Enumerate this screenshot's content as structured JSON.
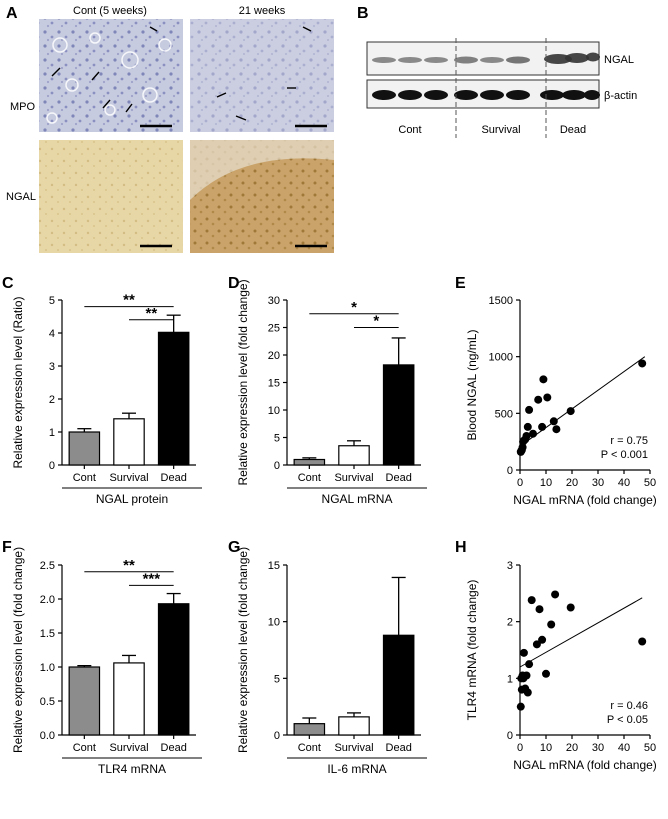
{
  "panel_a": {
    "letter": "A",
    "col_labels": [
      "Cont (5 weeks)",
      "21 weeks"
    ],
    "row_labels": [
      "MPO",
      "NGAL"
    ]
  },
  "panel_b": {
    "letter": "B",
    "blot_labels": [
      "NGAL",
      "β-actin"
    ],
    "group_labels": [
      "Cont",
      "Survival",
      "Dead"
    ]
  },
  "chart_data": [
    {
      "panel": "C",
      "type": "bar",
      "categories": [
        "Cont",
        "Survival",
        "Dead"
      ],
      "values": [
        1.0,
        1.4,
        4.02
      ],
      "errors": [
        0.1,
        0.17,
        0.52
      ],
      "colors": [
        "#8c8c8c",
        "#ffffff",
        "#000000"
      ],
      "ylabel": "Relative expression level (Ratio)",
      "xlabel": "NGAL protein",
      "ylim": [
        0,
        5
      ],
      "yticks": [
        0,
        1,
        2,
        3,
        4,
        5
      ],
      "significance": [
        {
          "from": 0,
          "to": 2,
          "label": "**",
          "y": 4.8
        },
        {
          "from": 1,
          "to": 2,
          "label": "**",
          "y": 4.4
        }
      ]
    },
    {
      "panel": "D",
      "type": "bar",
      "categories": [
        "Cont",
        "Survival",
        "Dead"
      ],
      "values": [
        1.0,
        3.5,
        18.2
      ],
      "errors": [
        0.3,
        0.9,
        4.9
      ],
      "colors": [
        "#8c8c8c",
        "#ffffff",
        "#000000"
      ],
      "ylabel": "Relative expression level (fold change)",
      "xlabel": "NGAL mRNA",
      "ylim": [
        0,
        30
      ],
      "yticks": [
        0,
        5,
        10,
        15,
        20,
        25,
        30
      ],
      "significance": [
        {
          "from": 0,
          "to": 2,
          "label": "*",
          "y": 27.5
        },
        {
          "from": 1,
          "to": 2,
          "label": "*",
          "y": 25.0
        }
      ]
    },
    {
      "panel": "E",
      "type": "scatter",
      "xlabel": "NGAL mRNA (fold change)",
      "ylabel": "Blood NGAL (ng/mL)",
      "xlim": [
        0,
        50
      ],
      "ylim": [
        0,
        1500
      ],
      "xticks": [
        0,
        10,
        20,
        30,
        40,
        50
      ],
      "yticks": [
        0,
        500,
        1000,
        1500
      ],
      "x": [
        0.3,
        0.5,
        0.7,
        1.0,
        1.2,
        1.5,
        2.0,
        2.5,
        3.0,
        3.5,
        5.0,
        7.0,
        8.5,
        9.0,
        10.5,
        13.0,
        14.0,
        19.5,
        47.0
      ],
      "y": [
        160,
        170,
        175,
        200,
        250,
        260,
        270,
        300,
        380,
        530,
        320,
        620,
        380,
        800,
        640,
        430,
        360,
        520,
        940
      ],
      "fit": {
        "x": [
          0,
          48
        ],
        "y": [
          210,
          1000
        ]
      },
      "annotation": {
        "r": "r = 0.75",
        "p": "P < 0.001"
      }
    },
    {
      "panel": "F",
      "type": "bar",
      "categories": [
        "Cont",
        "Survival",
        "Dead"
      ],
      "values": [
        1.0,
        1.06,
        1.93
      ],
      "errors": [
        0.02,
        0.11,
        0.15
      ],
      "colors": [
        "#8c8c8c",
        "#ffffff",
        "#000000"
      ],
      "ylabel": "Relative expression level (fold change)",
      "xlabel": "TLR4 mRNA",
      "ylim": [
        0,
        2.5
      ],
      "yticks": [
        0,
        0.5,
        1.0,
        1.5,
        2.0,
        2.5
      ],
      "ytick_labels": [
        "0.0",
        "0.5",
        "1.0",
        "1.5",
        "2.0",
        "2.5"
      ],
      "significance": [
        {
          "from": 0,
          "to": 2,
          "label": "**",
          "y": 2.4
        },
        {
          "from": 1,
          "to": 2,
          "label": "***",
          "y": 2.2
        }
      ]
    },
    {
      "panel": "G",
      "type": "bar",
      "categories": [
        "Cont",
        "Survival",
        "Dead"
      ],
      "values": [
        1.0,
        1.6,
        8.8
      ],
      "errors": [
        0.5,
        0.35,
        5.1
      ],
      "colors": [
        "#8c8c8c",
        "#ffffff",
        "#000000"
      ],
      "ylabel": "Relative expression level (fold change)",
      "xlabel": "IL-6 mRNA",
      "ylim": [
        0,
        15
      ],
      "yticks": [
        0,
        5,
        10,
        15
      ]
    },
    {
      "panel": "H",
      "type": "scatter",
      "xlabel": "NGAL mRNA (fold change)",
      "ylabel": "TLR4 mRNA (fold change)",
      "xlim": [
        0,
        50
      ],
      "ylim": [
        0,
        3
      ],
      "xticks": [
        0,
        10,
        20,
        30,
        40,
        50
      ],
      "yticks": [
        0,
        1,
        2,
        3
      ],
      "x": [
        0.3,
        0.5,
        0.7,
        1.0,
        1.3,
        1.5,
        2.0,
        2.5,
        3.0,
        3.5,
        4.5,
        6.5,
        7.5,
        8.5,
        10.0,
        12.0,
        13.5,
        19.5,
        47.0
      ],
      "y": [
        0.5,
        1.0,
        0.8,
        1.05,
        1.0,
        1.45,
        0.82,
        1.05,
        0.75,
        1.25,
        2.38,
        1.6,
        2.22,
        1.68,
        1.08,
        1.95,
        2.48,
        2.25,
        1.65
      ],
      "fit": {
        "x": [
          0,
          47
        ],
        "y": [
          1.2,
          2.42
        ]
      },
      "annotation": {
        "r": "r = 0.46",
        "p": "P < 0.05"
      }
    }
  ]
}
